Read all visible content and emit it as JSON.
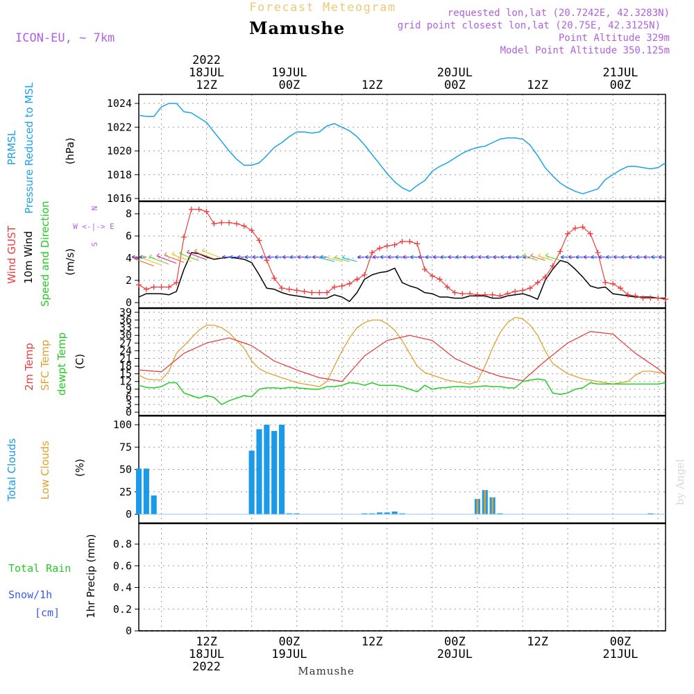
{
  "header": {
    "product": "Forecast Meteogram",
    "location": "Mamushe",
    "model": "ICON-EU, ~ 7km",
    "info_lines": [
      "requested lon,lat (20.7242E, 42.3283N)",
      "grid point closest lon,lat (20.75E, 42.3125N)",
      "Point Altitude 329m",
      "Model Point Altitude 350.125m"
    ],
    "footer_location": "Mamushe",
    "watermark": "by Angel"
  },
  "time_axis": {
    "start_hour": 3,
    "end_hour": 73,
    "top_labels": [
      {
        "hour": 12,
        "lines": [
          "2022",
          "18JUL",
          "12Z"
        ]
      },
      {
        "hour": 23,
        "lines": [
          "19JUL",
          "00Z"
        ]
      },
      {
        "hour": 34,
        "lines": [
          "12Z"
        ]
      },
      {
        "hour": 45,
        "lines": [
          "20JUL",
          "00Z"
        ]
      },
      {
        "hour": 56,
        "lines": [
          "12Z"
        ]
      },
      {
        "hour": 67,
        "lines": [
          "21JUL",
          "00Z"
        ]
      }
    ],
    "bottom_labels": [
      {
        "hour": 12,
        "lines": [
          "12Z",
          "18JUL",
          "2022"
        ]
      },
      {
        "hour": 23,
        "lines": [
          "00Z",
          "19JUL"
        ]
      },
      {
        "hour": 34,
        "lines": [
          "12Z"
        ]
      },
      {
        "hour": 45,
        "lines": [
          "00Z",
          "20JUL"
        ]
      },
      {
        "hour": 56,
        "lines": [
          "12Z"
        ]
      },
      {
        "hour": 67,
        "lines": [
          "00Z",
          "21JUL"
        ]
      }
    ]
  },
  "panel_labels": {
    "pressure": {
      "name": "PRMSL",
      "desc": "Pressure Reduced to MSL",
      "unit": "(hPa)"
    },
    "wind": {
      "gust": "Wind GUST",
      "wind": "10m Wind",
      "dir": "Speed and Direction",
      "unit": "(m/s)",
      "compass": [
        "N",
        "W <-|-> E",
        "S"
      ]
    },
    "temp": {
      "t2m": "2m Temp",
      "sfc": "SFC Temp",
      "dewpt": "dewpt Temp",
      "unit": "(C)"
    },
    "clouds": {
      "total": "Total Clouds",
      "low": "Low Clouds",
      "unit": "(%)"
    },
    "precip": {
      "rain": "Total  Rain",
      "snow": "Snow/1h",
      "snow_unit": "[cm]",
      "ylabel": "1hr Precip (mm)"
    }
  },
  "colors": {
    "pressure": "#1aa3e8",
    "gust": "#f03c3c",
    "wind": "#000000",
    "t2m": "#e84040",
    "sfc": "#e0a030",
    "dewpt": "#22cc22",
    "total_clouds": "#1a9ae8",
    "low_clouds": "#e0a030",
    "rain": "#22cc22",
    "snow": "#3a5ae8",
    "info": "#b060e0",
    "product": "#f0c878"
  },
  "chart_data": [
    {
      "type": "line",
      "id": "pressure",
      "title": "PRMSL",
      "ylabel": "Pressure Reduced to MSL (hPa)",
      "ylim": [
        1016,
        1025
      ],
      "yticks": [
        1016,
        1018,
        1020,
        1022,
        1024
      ],
      "series": [
        {
          "name": "PRMSL",
          "x": [
            3,
            4,
            5,
            6,
            7,
            8,
            9,
            10,
            11,
            12,
            13,
            14,
            15,
            16,
            17,
            18,
            19,
            20,
            21,
            22,
            23,
            24,
            25,
            26,
            27,
            28,
            29,
            30,
            31,
            32,
            33,
            34,
            35,
            36,
            37,
            38,
            39,
            40,
            41,
            42,
            43,
            44,
            45,
            46,
            47,
            48,
            49,
            50,
            51,
            52,
            53,
            54,
            55,
            56,
            57,
            58,
            59,
            60,
            61,
            62,
            63,
            64,
            65,
            66,
            67,
            68,
            69,
            70,
            71,
            72,
            73
          ],
          "values": [
            1023.0,
            1022.9,
            1022.9,
            1023.7,
            1024.0,
            1024.0,
            1023.3,
            1023.2,
            1022.8,
            1022.4,
            1021.6,
            1020.8,
            1020.0,
            1019.3,
            1018.8,
            1018.8,
            1019.0,
            1019.6,
            1020.3,
            1020.7,
            1021.2,
            1021.6,
            1021.6,
            1021.5,
            1021.6,
            1022.1,
            1022.3,
            1022.0,
            1021.7,
            1021.2,
            1020.5,
            1019.7,
            1018.9,
            1018.1,
            1017.4,
            1016.9,
            1016.6,
            1017.1,
            1017.5,
            1018.3,
            1018.7,
            1019.0,
            1019.4,
            1019.8,
            1020.1,
            1020.3,
            1020.4,
            1020.7,
            1021.0,
            1021.1,
            1021.1,
            1021.0,
            1020.5,
            1019.6,
            1018.6,
            1017.9,
            1017.3,
            1016.9,
            1016.6,
            1016.4,
            1016.6,
            1016.8,
            1017.6,
            1018.0,
            1018.4,
            1018.7,
            1018.7,
            1018.6,
            1018.5,
            1018.6,
            1019.0
          ]
        }
      ]
    },
    {
      "type": "line",
      "id": "wind",
      "ylabel": "(m/s)",
      "ylim": [
        -0.5,
        9
      ],
      "yticks": [
        0,
        2,
        4,
        6,
        8
      ],
      "series": [
        {
          "name": "Wind GUST",
          "x": [
            3,
            4,
            5,
            6,
            7,
            8,
            9,
            10,
            11,
            12,
            13,
            14,
            15,
            16,
            17,
            18,
            19,
            20,
            21,
            22,
            23,
            24,
            25,
            26,
            27,
            28,
            29,
            30,
            31,
            32,
            33,
            34,
            35,
            36,
            37,
            38,
            39,
            40,
            41,
            42,
            43,
            44,
            45,
            46,
            47,
            48,
            49,
            50,
            51,
            52,
            53,
            54,
            55,
            56,
            57,
            58,
            59,
            60,
            61,
            62,
            63,
            64,
            65,
            66,
            67,
            68,
            69,
            70,
            71,
            72,
            73
          ],
          "values": [
            1.6,
            1.2,
            1.4,
            1.4,
            1.4,
            1.8,
            5.9,
            8.4,
            8.4,
            8.2,
            7.1,
            7.2,
            7.2,
            7.1,
            6.9,
            6.5,
            5.6,
            3.8,
            2.2,
            1.3,
            1.2,
            1.1,
            1.0,
            0.9,
            0.9,
            0.9,
            1.4,
            1.5,
            1.7,
            2.1,
            2.5,
            4.5,
            4.9,
            5.1,
            5.2,
            5.5,
            5.5,
            5.3,
            3.0,
            2.4,
            2.1,
            1.4,
            0.9,
            0.8,
            0.8,
            0.7,
            0.7,
            0.7,
            0.6,
            0.8,
            1.0,
            1.1,
            1.3,
            1.8,
            2.3,
            3.3,
            4.6,
            6.2,
            6.7,
            6.8,
            6.2,
            4.5,
            1.8,
            1.7,
            1.3,
            0.7,
            0.6,
            0.4,
            0.4,
            0.4,
            0.3
          ]
        },
        {
          "name": "10m Wind",
          "x": [
            3,
            4,
            5,
            6,
            7,
            8,
            9,
            10,
            11,
            12,
            13,
            14,
            15,
            16,
            17,
            18,
            19,
            20,
            21,
            22,
            23,
            24,
            25,
            26,
            27,
            28,
            29,
            30,
            31,
            32,
            33,
            34,
            35,
            36,
            37,
            38,
            39,
            40,
            41,
            42,
            43,
            44,
            45,
            46,
            47,
            48,
            49,
            50,
            51,
            52,
            53,
            54,
            55,
            56,
            57,
            58,
            59,
            60,
            61,
            62,
            63,
            64,
            65,
            66,
            67,
            68,
            69,
            70,
            71,
            72,
            73
          ],
          "values": [
            0.5,
            0.8,
            0.8,
            0.8,
            0.7,
            1.0,
            3.0,
            4.5,
            4.4,
            4.1,
            3.9,
            4.0,
            4.1,
            4.0,
            3.9,
            3.6,
            2.5,
            1.3,
            1.2,
            0.9,
            0.7,
            0.6,
            0.5,
            0.4,
            0.4,
            0.4,
            0.7,
            0.5,
            0.1,
            0.9,
            2.1,
            2.5,
            2.7,
            2.8,
            3.1,
            1.8,
            1.5,
            1.3,
            0.9,
            0.8,
            0.5,
            0.5,
            0.4,
            0.4,
            0.6,
            0.6,
            0.6,
            0.4,
            0.4,
            0.6,
            0.7,
            0.8,
            0.6,
            0.3,
            2.0,
            3.0,
            3.8,
            3.6,
            3.0,
            2.3,
            1.5,
            1.3,
            1.4,
            0.8,
            0.7,
            0.6,
            0.5,
            0.5,
            0.5,
            0.4,
            0.4
          ]
        }
      ],
      "wind_direction_arrows": true
    },
    {
      "type": "line",
      "id": "temperature",
      "ylabel": "(C)",
      "ylim": [
        0,
        39.5
      ],
      "yticks": [
        0,
        3,
        6,
        9,
        12,
        15,
        18,
        21,
        24,
        27,
        30,
        33,
        36,
        39
      ],
      "series": [
        {
          "name": "2m Temp",
          "x": [
            3,
            6,
            9,
            12,
            15,
            18,
            21,
            24,
            27,
            30,
            33,
            36,
            39,
            42,
            45,
            48,
            51,
            54,
            57,
            60,
            63,
            66,
            69,
            72,
            73
          ],
          "values": [
            16.5,
            15.8,
            23,
            27,
            29,
            26,
            20,
            16.5,
            13.5,
            12,
            22,
            28,
            30,
            28,
            21,
            17,
            14,
            12.3,
            20,
            27,
            31.5,
            30.5,
            23,
            17,
            14.5
          ]
        },
        {
          "name": "SFC Temp",
          "x": [
            3,
            4,
            5,
            6,
            7,
            8,
            9,
            10,
            11,
            12,
            13,
            14,
            15,
            16,
            17,
            18,
            19,
            20,
            21,
            22,
            23,
            24,
            25,
            26,
            27,
            28,
            29,
            30,
            31,
            32,
            33,
            34,
            35,
            36,
            37,
            38,
            39,
            40,
            41,
            42,
            43,
            44,
            45,
            46,
            47,
            48,
            49,
            50,
            51,
            52,
            53,
            54,
            55,
            56,
            57,
            58,
            59,
            60,
            61,
            62,
            63,
            64,
            65,
            66,
            67,
            68,
            69,
            70,
            71,
            72,
            73
          ],
          "values": [
            14.5,
            13,
            12.7,
            12.6,
            16,
            23,
            26,
            29,
            32,
            34,
            34,
            33,
            31,
            28,
            25,
            20,
            17,
            15.5,
            14.5,
            13.5,
            12.5,
            11.5,
            11,
            10.5,
            10,
            12,
            18,
            24,
            29,
            33,
            35,
            36,
            36,
            34.5,
            32,
            28,
            23,
            18,
            15.5,
            14.5,
            13.5,
            12.5,
            12,
            11.5,
            11,
            12,
            18,
            25,
            31,
            35,
            37,
            36.5,
            34,
            30,
            24,
            19,
            17,
            15,
            14,
            13,
            12.5,
            12,
            11.5,
            11,
            11.5,
            12,
            14.5,
            16,
            16,
            15.5,
            15.5
          ]
        },
        {
          "name": "dewpt Temp",
          "x": [
            3,
            4,
            5,
            6,
            7,
            8,
            9,
            10,
            11,
            12,
            13,
            14,
            15,
            16,
            17,
            18,
            19,
            20,
            21,
            22,
            23,
            24,
            25,
            26,
            27,
            28,
            29,
            30,
            31,
            32,
            33,
            34,
            35,
            36,
            37,
            38,
            39,
            40,
            41,
            42,
            43,
            44,
            45,
            46,
            47,
            48,
            49,
            50,
            51,
            52,
            53,
            54,
            55,
            56,
            57,
            58,
            59,
            60,
            61,
            62,
            63,
            64,
            65,
            66,
            67,
            68,
            69,
            70,
            71,
            72,
            73
          ],
          "values": [
            10.5,
            9.7,
            9.5,
            10,
            11.5,
            11.5,
            7.5,
            6.5,
            5.5,
            6.5,
            5.8,
            3,
            4.5,
            5.5,
            6.5,
            6,
            9,
            9.5,
            9.5,
            9.3,
            9.7,
            9.5,
            9.3,
            9,
            9,
            10,
            10,
            10.5,
            11.5,
            11.3,
            10.5,
            11.5,
            10.5,
            10.5,
            10.5,
            10,
            9,
            8,
            10.5,
            9,
            9.5,
            9.7,
            10,
            10,
            9.8,
            10,
            10.3,
            10,
            10,
            9.5,
            9.5,
            12,
            12.5,
            13,
            12.5,
            7.5,
            7,
            7.5,
            9,
            9.5,
            11.5,
            11,
            11,
            11,
            11,
            11,
            11,
            11,
            11,
            11,
            11.5
          ]
        }
      ]
    },
    {
      "type": "bar",
      "id": "clouds",
      "ylabel": "(%)",
      "ylim": [
        -5,
        105
      ],
      "yticks": [
        0,
        25,
        50,
        75,
        100
      ],
      "series": [
        {
          "name": "Total Clouds",
          "x": [
            3,
            4,
            5,
            18,
            19,
            20,
            21,
            22,
            23,
            24,
            33,
            34,
            35,
            36,
            37,
            38,
            48,
            49,
            50,
            51,
            71
          ],
          "values": [
            51,
            51,
            21,
            71,
            95,
            100,
            93,
            100,
            1,
            1,
            1,
            1,
            2,
            2,
            3,
            1,
            17,
            27,
            19,
            1,
            1
          ]
        },
        {
          "name": "Low Clouds",
          "x": [
            48,
            49,
            50
          ],
          "values": [
            17,
            27,
            19
          ]
        }
      ]
    },
    {
      "type": "bar",
      "id": "precip",
      "ylabel": "1hr Precip (mm)",
      "ylim": [
        0,
        1.0
      ],
      "yticks": [
        0,
        0.2,
        0.4,
        0.6,
        0.8
      ],
      "series": [
        {
          "name": "Total Rain",
          "values": []
        },
        {
          "name": "Snow/1h",
          "values": []
        }
      ]
    }
  ]
}
